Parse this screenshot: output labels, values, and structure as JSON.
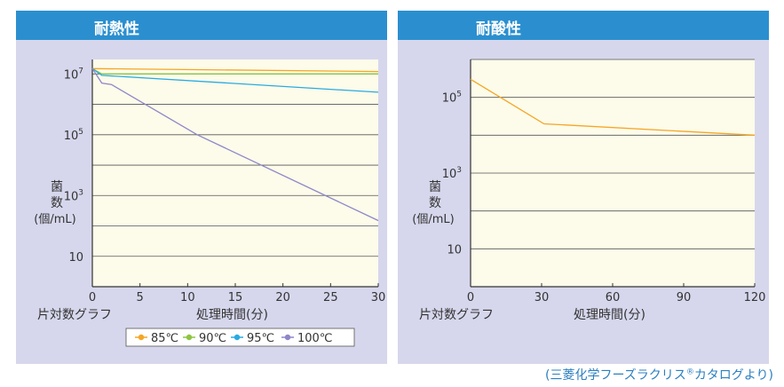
{
  "panels": [
    {
      "title": "耐熱性"
    },
    {
      "title": "耐酸性"
    }
  ],
  "source": {
    "text": "(三菱化学フーズラクリス",
    "mark": "®",
    "suffix": "カタログより)"
  },
  "colors": {
    "panel_bg": "#d6d7ec",
    "header": "#2b8fcf",
    "plot_bg": "#fdfbea",
    "grid": "#555555"
  },
  "chart_data": [
    {
      "type": "line",
      "title": "耐熱性",
      "ylabel": "菌数(個/mL)",
      "ylabel_parts": [
        "菌",
        "数",
        "(個/mL)"
      ],
      "xlabel": "処理時間(分)",
      "scale_label": "片対数グラフ",
      "y_scale": "log",
      "ylim": [
        1,
        30000000
      ],
      "xlim": [
        0,
        30
      ],
      "x_ticks": [
        0,
        5,
        10,
        15,
        20,
        25,
        30
      ],
      "y_tick_labels": [
        {
          "base": "10",
          "exp": "7",
          "value": 10000000
        },
        {
          "base": "10",
          "exp": "5",
          "value": 100000
        },
        {
          "base": "10",
          "exp": "3",
          "value": 1000
        },
        {
          "base": "10",
          "exp": "",
          "value": 10
        }
      ],
      "legend": {
        "placement": "bottom-center",
        "entries": [
          "85℃",
          "90℃",
          "95℃",
          "100℃"
        ]
      },
      "series": [
        {
          "name": "85℃",
          "color": "#f5a623",
          "x": [
            0,
            30
          ],
          "y": [
            15000000,
            12000000
          ]
        },
        {
          "name": "90℃",
          "color": "#8dc63f",
          "x": [
            0,
            1,
            30
          ],
          "y": [
            15000000,
            10000000,
            10000000
          ]
        },
        {
          "name": "95℃",
          "color": "#29abe2",
          "x": [
            0,
            1,
            30
          ],
          "y": [
            15000000,
            9000000,
            2500000
          ]
        },
        {
          "name": "100℃",
          "color": "#8e86c9",
          "x": [
            0,
            1,
            2,
            11,
            30
          ],
          "y": [
            15000000,
            5000000,
            4500000,
            100000,
            150
          ]
        }
      ]
    },
    {
      "type": "line",
      "title": "耐酸性",
      "ylabel": "菌数(個/mL)",
      "ylabel_parts": [
        "菌",
        "数",
        "(個/mL)"
      ],
      "xlabel": "処理時間(分)",
      "scale_label": "片対数グラフ",
      "y_scale": "log",
      "ylim": [
        1,
        1000000
      ],
      "xlim": [
        0,
        120
      ],
      "x_ticks": [
        0,
        30,
        60,
        90,
        120
      ],
      "y_tick_labels": [
        {
          "base": "10",
          "exp": "5",
          "value": 100000
        },
        {
          "base": "10",
          "exp": "3",
          "value": 1000
        },
        {
          "base": "10",
          "exp": "",
          "value": 10
        }
      ],
      "series": [
        {
          "name": "",
          "color": "#f5a623",
          "x": [
            0,
            31,
            120
          ],
          "y": [
            300000,
            20000,
            10000
          ]
        }
      ]
    }
  ]
}
